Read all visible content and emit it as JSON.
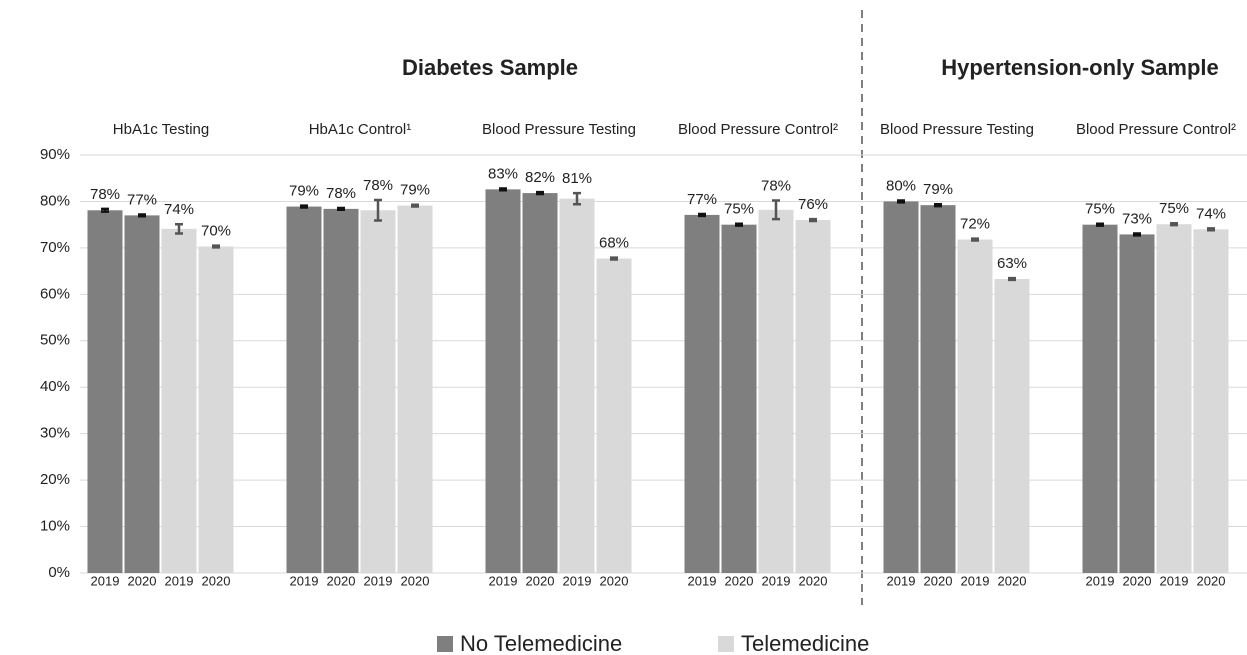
{
  "chart_data": {
    "type": "bar",
    "series": [
      {
        "name": "No Telemedicine",
        "color": "#7f7f7f"
      },
      {
        "name": "Telemedicine",
        "color": "#d9d9d9"
      }
    ],
    "ylim": [
      0,
      90
    ],
    "yticks": [
      {
        "value": 0,
        "label": "0%"
      },
      {
        "value": 10,
        "label": "10%"
      },
      {
        "value": 20,
        "label": "20%"
      },
      {
        "value": 30,
        "label": "30%"
      },
      {
        "value": 40,
        "label": "40%"
      },
      {
        "value": 50,
        "label": "50%"
      },
      {
        "value": 60,
        "label": "60%"
      },
      {
        "value": 70,
        "label": "70%"
      },
      {
        "value": 80,
        "label": "80%"
      },
      {
        "value": 90,
        "label": "90%"
      }
    ],
    "grid": true,
    "legend": "bottom",
    "sections": [
      {
        "title": "Diabetes Sample",
        "groups": [
          {
            "label": "HbA1c Testing",
            "years": [
              "2019",
              "2020",
              "2019",
              "2020"
            ],
            "values": [
              78.1,
              77.0,
              74.1,
              70.3
            ],
            "errors": [
              0.3,
              0.2,
              1.0,
              0.2
            ],
            "value_labels": [
              "78%",
              "77%",
              "74%",
              "70%"
            ]
          },
          {
            "label": "HbA1c Control¹",
            "years": [
              "2019",
              "2020",
              "2019",
              "2020"
            ],
            "values": [
              78.9,
              78.4,
              78.1,
              79.1
            ],
            "errors": [
              0.2,
              0.2,
              2.2,
              0.2
            ],
            "value_labels": [
              "79%",
              "78%",
              "78%",
              "79%"
            ]
          },
          {
            "label": "Blood Pressure Testing",
            "years": [
              "2019",
              "2020",
              "2019",
              "2020"
            ],
            "values": [
              82.6,
              81.8,
              80.6,
              67.7
            ],
            "errors": [
              0.2,
              0.2,
              1.2,
              0.2
            ],
            "value_labels": [
              "83%",
              "82%",
              "81%",
              "68%"
            ]
          },
          {
            "label": "Blood Pressure Control²",
            "years": [
              "2019",
              "2020",
              "2019",
              "2020"
            ],
            "values": [
              77.1,
              75.0,
              78.2,
              76.0
            ],
            "errors": [
              0.2,
              0.2,
              2.0,
              0.2
            ],
            "value_labels": [
              "77%",
              "75%",
              "78%",
              "76%"
            ]
          }
        ]
      },
      {
        "title": "Hypertension-only Sample",
        "groups": [
          {
            "label": "Blood Pressure Testing",
            "years": [
              "2019",
              "2020",
              "2019",
              "2020"
            ],
            "values": [
              80.0,
              79.2,
              71.8,
              63.3
            ],
            "errors": [
              0.2,
              0.2,
              0.2,
              0.2
            ],
            "value_labels": [
              "80%",
              "79%",
              "72%",
              "63%"
            ]
          },
          {
            "label": "Blood Pressure Control²",
            "years": [
              "2019",
              "2020",
              "2019",
              "2020"
            ],
            "values": [
              75.0,
              72.9,
              75.1,
              74.0
            ],
            "errors": [
              0.2,
              0.2,
              0.2,
              0.2
            ],
            "value_labels": [
              "75%",
              "73%",
              "75%",
              "74%"
            ]
          }
        ]
      }
    ]
  }
}
